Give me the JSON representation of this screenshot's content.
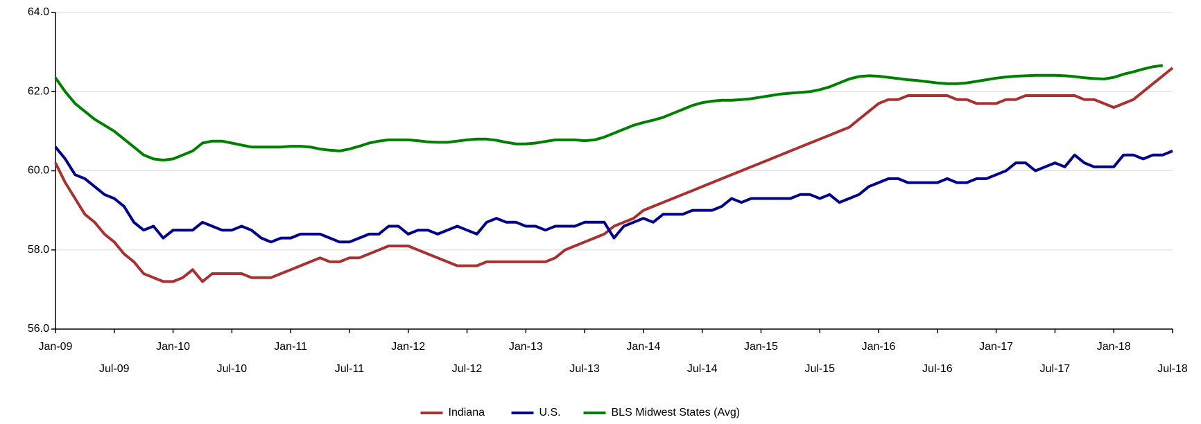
{
  "chart_data": {
    "type": "line",
    "categories": [
      "Jan-09",
      null,
      null,
      null,
      null,
      null,
      "Jul-09",
      null,
      null,
      null,
      null,
      null,
      "Jan-10",
      null,
      null,
      null,
      null,
      null,
      "Jul-10",
      null,
      null,
      null,
      null,
      null,
      "Jan-11",
      null,
      null,
      null,
      null,
      null,
      "Jul-11",
      null,
      null,
      null,
      null,
      null,
      "Jan-12",
      null,
      null,
      null,
      null,
      null,
      "Jul-12",
      null,
      null,
      null,
      null,
      null,
      "Jan-13",
      null,
      null,
      null,
      null,
      null,
      "Jul-13",
      null,
      null,
      null,
      null,
      null,
      "Jan-14",
      null,
      null,
      null,
      null,
      null,
      "Jul-14",
      null,
      null,
      null,
      null,
      null,
      "Jan-15",
      null,
      null,
      null,
      null,
      null,
      "Jul-15",
      null,
      null,
      null,
      null,
      null,
      "Jan-16",
      null,
      null,
      null,
      null,
      null,
      "Jul-16",
      null,
      null,
      null,
      null,
      null,
      "Jan-17",
      null,
      null,
      null,
      null,
      null,
      "Jul-17",
      null,
      null,
      null,
      null,
      null,
      "Jan-18",
      null,
      null,
      null,
      null,
      null,
      "Jul-18"
    ],
    "series": [
      {
        "name": "Indiana",
        "color": "#a83232",
        "values": [
          60.2,
          59.7,
          59.3,
          58.9,
          58.7,
          58.4,
          58.2,
          57.9,
          57.7,
          57.4,
          57.3,
          57.2,
          57.2,
          57.3,
          57.5,
          57.2,
          57.4,
          57.4,
          57.4,
          57.4,
          57.3,
          57.3,
          57.3,
          57.4,
          57.5,
          57.6,
          57.7,
          57.8,
          57.7,
          57.7,
          57.8,
          57.8,
          57.9,
          58.0,
          58.1,
          58.1,
          58.1,
          58.0,
          57.9,
          57.8,
          57.7,
          57.6,
          57.6,
          57.6,
          57.7,
          57.7,
          57.7,
          57.7,
          57.7,
          57.7,
          57.7,
          57.8,
          58.0,
          58.1,
          58.2,
          58.3,
          58.4,
          58.6,
          58.7,
          58.8,
          59.0,
          59.1,
          59.2,
          59.3,
          59.4,
          59.5,
          59.6,
          59.7,
          59.8,
          59.9,
          60.0,
          60.1,
          60.2,
          60.3,
          60.4,
          60.5,
          60.6,
          60.7,
          60.8,
          60.9,
          61.0,
          61.1,
          61.3,
          61.5,
          61.7,
          61.8,
          61.8,
          61.9,
          61.9,
          61.9,
          61.9,
          61.9,
          61.8,
          61.8,
          61.7,
          61.7,
          61.7,
          61.8,
          61.8,
          61.9,
          61.9,
          61.9,
          61.9,
          61.9,
          61.9,
          61.8,
          61.8,
          61.7,
          61.6,
          61.7,
          61.8,
          62.0,
          62.2,
          62.4,
          62.6
        ]
      },
      {
        "name": "U.S.",
        "color": "#00008b",
        "values": [
          60.6,
          60.3,
          59.9,
          59.8,
          59.6,
          59.4,
          59.3,
          59.1,
          58.7,
          58.5,
          58.6,
          58.3,
          58.5,
          58.5,
          58.5,
          58.7,
          58.6,
          58.5,
          58.5,
          58.6,
          58.5,
          58.3,
          58.2,
          58.3,
          58.3,
          58.4,
          58.4,
          58.4,
          58.3,
          58.2,
          58.2,
          58.3,
          58.4,
          58.4,
          58.6,
          58.6,
          58.4,
          58.5,
          58.5,
          58.4,
          58.5,
          58.6,
          58.5,
          58.4,
          58.7,
          58.8,
          58.7,
          58.7,
          58.6,
          58.6,
          58.5,
          58.6,
          58.6,
          58.6,
          58.7,
          58.7,
          58.7,
          58.3,
          58.6,
          58.7,
          58.8,
          58.7,
          58.9,
          58.9,
          58.9,
          59.0,
          59.0,
          59.0,
          59.1,
          59.3,
          59.2,
          59.3,
          59.3,
          59.3,
          59.3,
          59.3,
          59.4,
          59.4,
          59.3,
          59.4,
          59.2,
          59.3,
          59.4,
          59.6,
          59.7,
          59.8,
          59.8,
          59.7,
          59.7,
          59.7,
          59.7,
          59.8,
          59.7,
          59.7,
          59.8,
          59.8,
          59.9,
          60.0,
          60.2,
          60.2,
          60.0,
          60.1,
          60.2,
          60.1,
          60.4,
          60.2,
          60.1,
          60.1,
          60.1,
          60.4,
          60.4,
          60.3,
          60.4,
          60.4,
          60.5
        ]
      },
      {
        "name": "BLS Midwest States (Avg)",
        "color": "#008000",
        "values": [
          62.35,
          62.0,
          61.7,
          61.5,
          61.3,
          61.15,
          61.0,
          60.8,
          60.6,
          60.4,
          60.3,
          60.27,
          60.3,
          60.4,
          60.5,
          60.7,
          60.75,
          60.75,
          60.7,
          60.65,
          60.6,
          60.6,
          60.6,
          60.6,
          60.62,
          60.62,
          60.6,
          60.55,
          60.52,
          60.5,
          60.55,
          60.62,
          60.7,
          60.75,
          60.78,
          60.78,
          60.78,
          60.76,
          60.73,
          60.72,
          60.72,
          60.75,
          60.78,
          60.8,
          60.8,
          60.77,
          60.72,
          60.68,
          60.68,
          60.7,
          60.74,
          60.78,
          60.78,
          60.78,
          60.76,
          60.78,
          60.85,
          60.95,
          61.05,
          61.15,
          61.22,
          61.28,
          61.35,
          61.45,
          61.55,
          61.65,
          61.72,
          61.76,
          61.78,
          61.78,
          61.8,
          61.82,
          61.86,
          61.9,
          61.94,
          61.96,
          61.98,
          62.0,
          62.05,
          62.12,
          62.22,
          62.32,
          62.38,
          62.4,
          62.39,
          62.36,
          62.33,
          62.3,
          62.28,
          62.25,
          62.22,
          62.2,
          62.2,
          62.22,
          62.26,
          62.3,
          62.34,
          62.37,
          62.39,
          62.4,
          62.41,
          62.41,
          62.41,
          62.4,
          62.38,
          62.35,
          62.33,
          62.32,
          62.36,
          62.44,
          62.5,
          62.57,
          62.63,
          62.66,
          null
        ]
      }
    ],
    "ylim": [
      56,
      64
    ],
    "yticks": [
      {
        "value": 56,
        "label": "56.0"
      },
      {
        "value": 58,
        "label": "58.0"
      },
      {
        "value": 60,
        "label": "60.0"
      },
      {
        "value": 62,
        "label": "62.0"
      },
      {
        "value": 64,
        "label": "64.0"
      }
    ],
    "grid": true
  }
}
